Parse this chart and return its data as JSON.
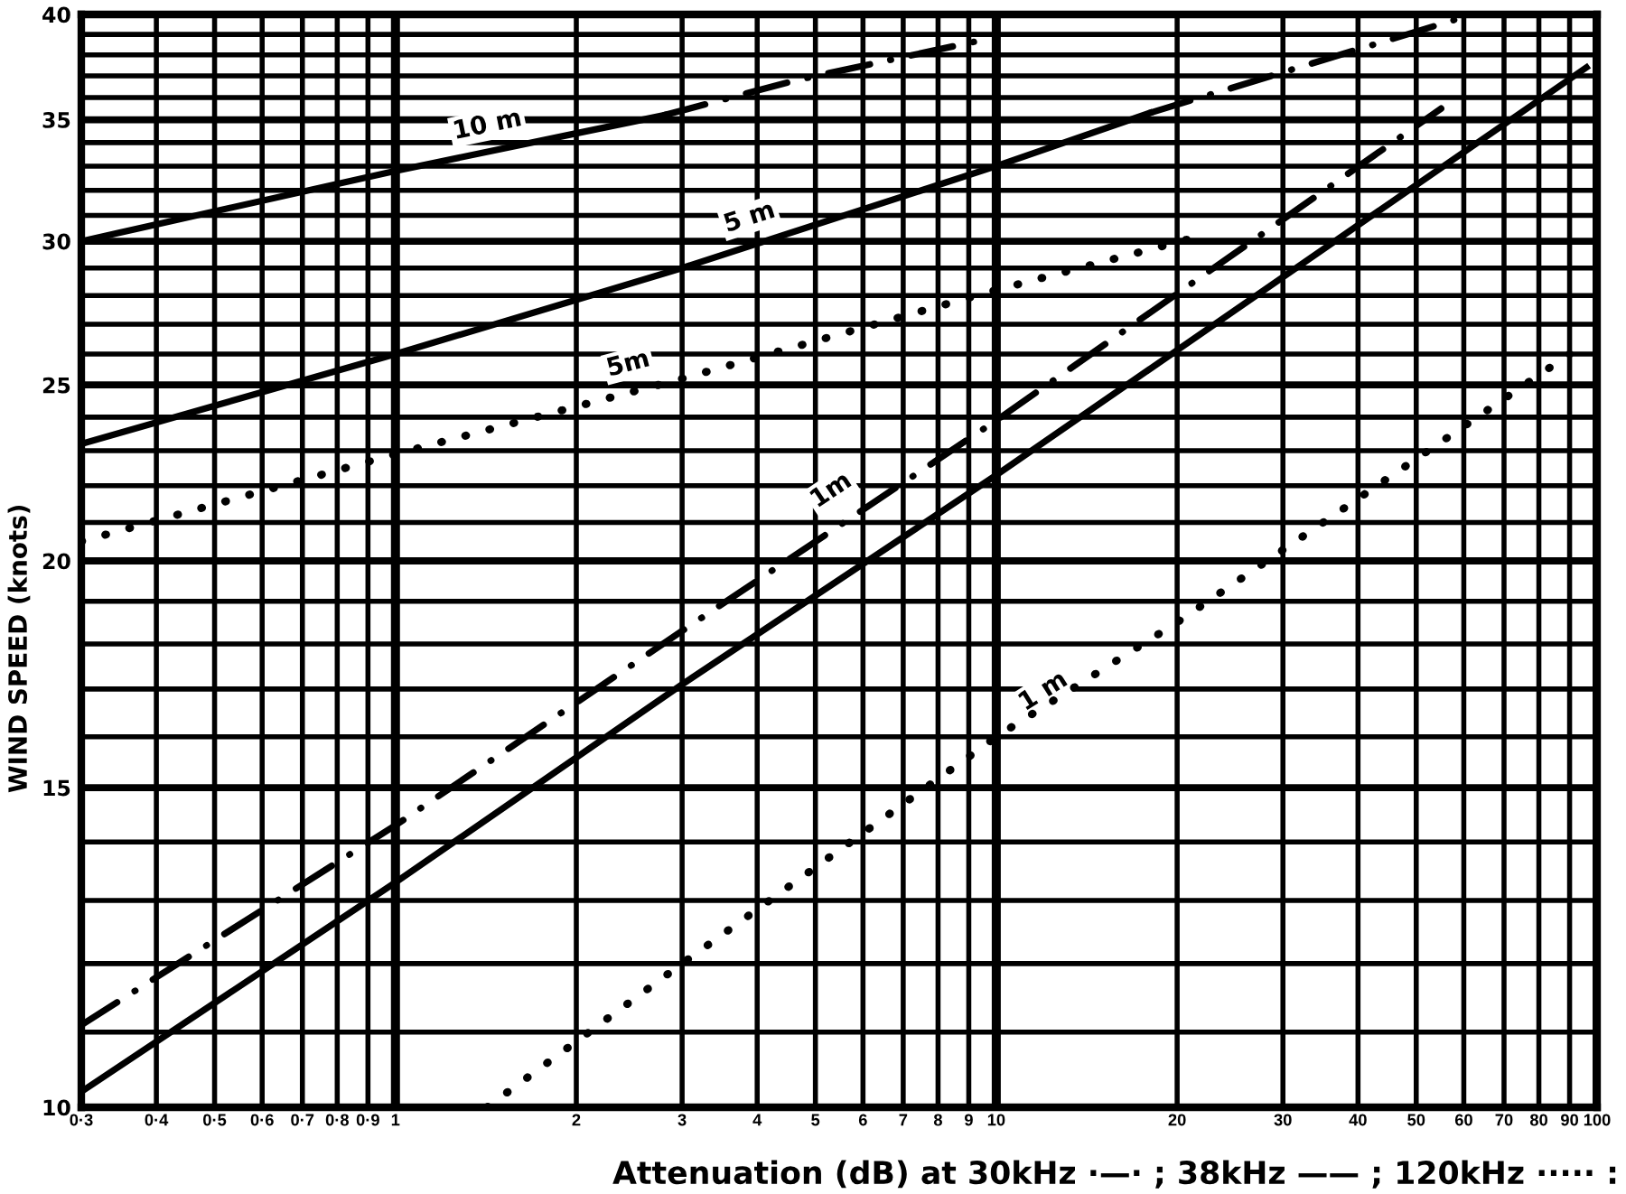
{
  "chart_data": {
    "type": "line",
    "xlabel": "Attenuation (dB) at 30kHz ·—· ; 38kHz —— ; 120kHz ····· :",
    "ylabel": "WIND SPEED (knots)",
    "log": "xy",
    "xlim": [
      0.3,
      100
    ],
    "ylim": [
      10,
      40
    ],
    "xticks": [
      {
        "value": 0.3,
        "label": "0·3"
      },
      {
        "value": 0.4,
        "label": "0·4"
      },
      {
        "value": 0.5,
        "label": "0·5"
      },
      {
        "value": 0.6,
        "label": "0·6"
      },
      {
        "value": 0.7,
        "label": "0·7"
      },
      {
        "value": 0.8,
        "label": "0·8"
      },
      {
        "value": 0.9,
        "label": "0·9"
      },
      1,
      2,
      3,
      4,
      5,
      6,
      7,
      8,
      9,
      10,
      20,
      30,
      40,
      50,
      60,
      70,
      80,
      90,
      100
    ],
    "yticks": [
      10,
      {
        "value": 11,
        "label": null
      },
      {
        "value": 12,
        "label": null
      },
      {
        "value": 13,
        "label": null
      },
      {
        "value": 14,
        "label": null
      },
      15,
      {
        "value": 16,
        "label": null
      },
      {
        "value": 17,
        "label": null
      },
      {
        "value": 18,
        "label": null
      },
      {
        "value": 19,
        "label": null
      },
      20,
      {
        "value": 21,
        "label": null
      },
      {
        "value": 22,
        "label": null
      },
      {
        "value": 23,
        "label": null
      },
      {
        "value": 24,
        "label": null
      },
      25,
      {
        "value": 26,
        "label": null
      },
      {
        "value": 27,
        "label": null
      },
      {
        "value": 28,
        "label": null
      },
      {
        "value": 29,
        "label": null
      },
      30,
      {
        "value": 31,
        "label": null
      },
      {
        "value": 32,
        "label": null
      },
      {
        "value": 33,
        "label": null
      },
      {
        "value": 34,
        "label": null
      },
      35,
      {
        "value": 36,
        "label": null
      },
      {
        "value": 37,
        "label": null
      },
      {
        "value": 38,
        "label": null
      },
      {
        "value": 39,
        "label": null
      },
      40
    ],
    "grid": true,
    "series": [
      {
        "color": "#000000",
        "line_style": "solid",
        "x": [
          0.3,
          1,
          2,
          2.8
        ],
        "values": [
          30,
          32.8,
          34.4,
          35.2
        ]
      },
      {
        "color": "#000000",
        "line_style": "dashdot",
        "x": [
          2.8,
          4.65,
          9.4
        ],
        "values": [
          35.2,
          36.8,
          38.7
        ]
      },
      {
        "color": "#000000",
        "line_style": "solid",
        "x": [
          0.3,
          1,
          3,
          10,
          18
        ],
        "values": [
          23.2,
          26,
          29,
          33,
          35.3
        ]
      },
      {
        "color": "#000000",
        "line_style": "dashdot",
        "x": [
          18,
          59
        ],
        "values": [
          35.3,
          39.8
        ]
      },
      {
        "color": "#000000",
        "line_style": "dotted",
        "x": [
          0.3,
          1,
          3,
          10,
          21.9
        ],
        "values": [
          20.5,
          22.9,
          25.2,
          28.2,
          30.2
        ]
      },
      {
        "color": "#000000",
        "line_style": "dashdot",
        "x": [
          0.3,
          1,
          3,
          10,
          55
        ],
        "values": [
          11.1,
          14.3,
          18.3,
          23.9,
          35.5
        ]
      },
      {
        "color": "#000000",
        "line_style": "solid",
        "x": [
          0.3,
          1,
          3,
          10,
          96
        ],
        "values": [
          10.2,
          13.3,
          17.1,
          22.3,
          37.4
        ]
      },
      {
        "color": "#000000",
        "line_style": "dotted",
        "x": [
          1.42,
          3,
          10,
          20,
          90
        ],
        "values": [
          10,
          12,
          16,
          18.5,
          26
        ]
      }
    ],
    "annotations": [
      {
        "text": "10 m",
        "x": 1.45,
        "y": 33.7
      },
      {
        "text": "5 m",
        "x": 4,
        "y": 30
      },
      {
        "text": "5m",
        "x": 2.5,
        "y": 24.9
      },
      {
        "text": "1m",
        "x": 5.6,
        "y": 21.3
      },
      {
        "text": "1 m",
        "x": 12.6,
        "y": 16.5
      }
    ]
  }
}
